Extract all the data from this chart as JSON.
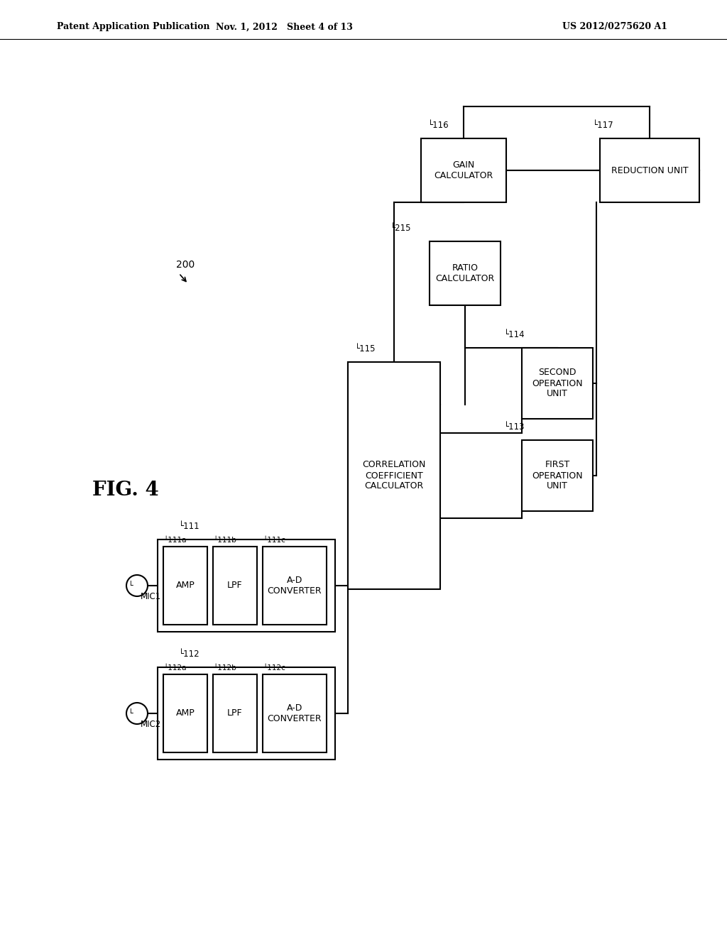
{
  "title_left": "Patent Application Publication",
  "title_mid": "Nov. 1, 2012   Sheet 4 of 13",
  "title_right": "US 2012/0275620 A1",
  "fig_label": "FIG. 4",
  "background_color": "#ffffff"
}
